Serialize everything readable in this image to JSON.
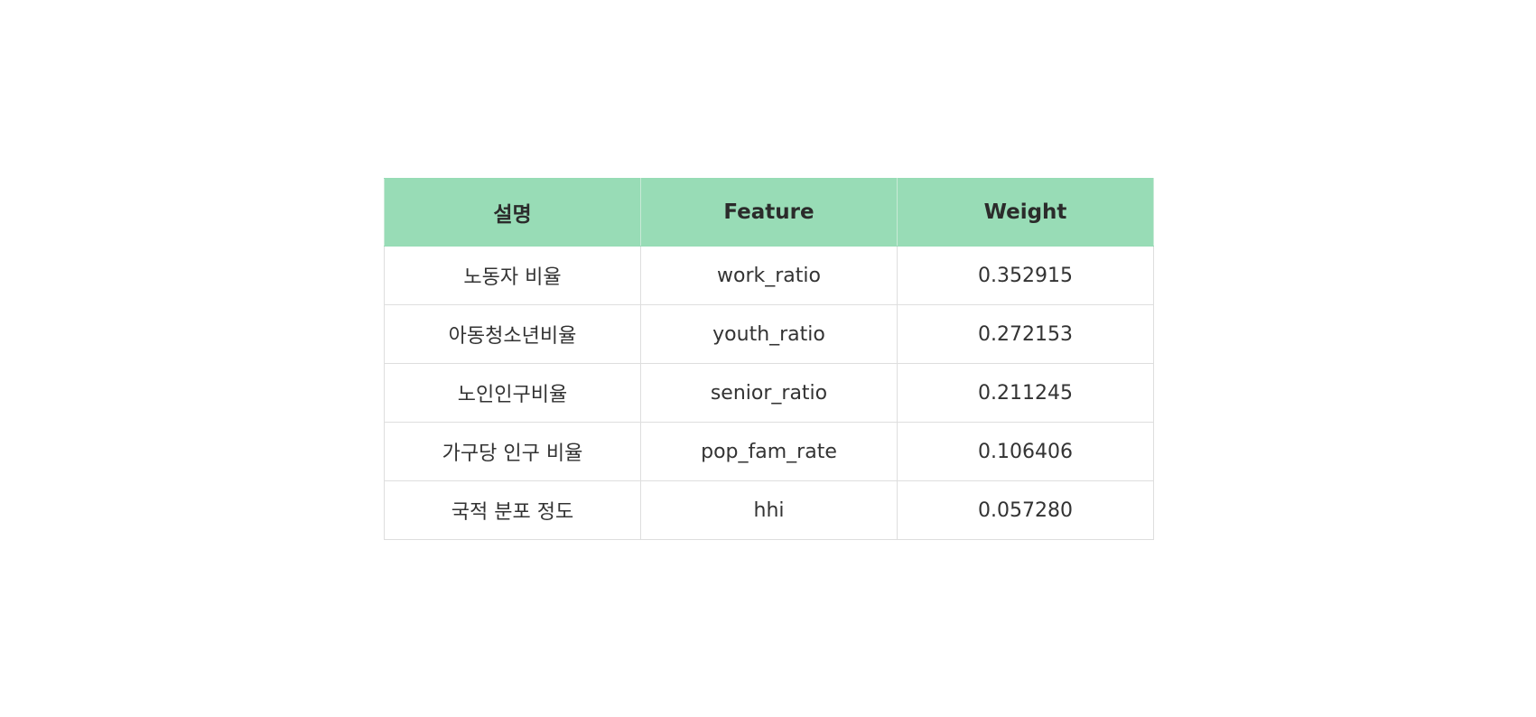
{
  "table": {
    "header_bg": "#98dcb6",
    "columns": [
      "설명",
      "Feature",
      "Weight"
    ],
    "rows": [
      [
        "노동자 비율",
        "work_ratio",
        "0.352915"
      ],
      [
        "아동청소년비율",
        "youth_ratio",
        "0.272153"
      ],
      [
        "노인인구비율",
        "senior_ratio",
        "0.211245"
      ],
      [
        "가구당 인구 비율",
        "pop_fam_rate",
        "0.106406"
      ],
      [
        "국적 분포 정도",
        "hhi",
        "0.057280"
      ]
    ]
  }
}
